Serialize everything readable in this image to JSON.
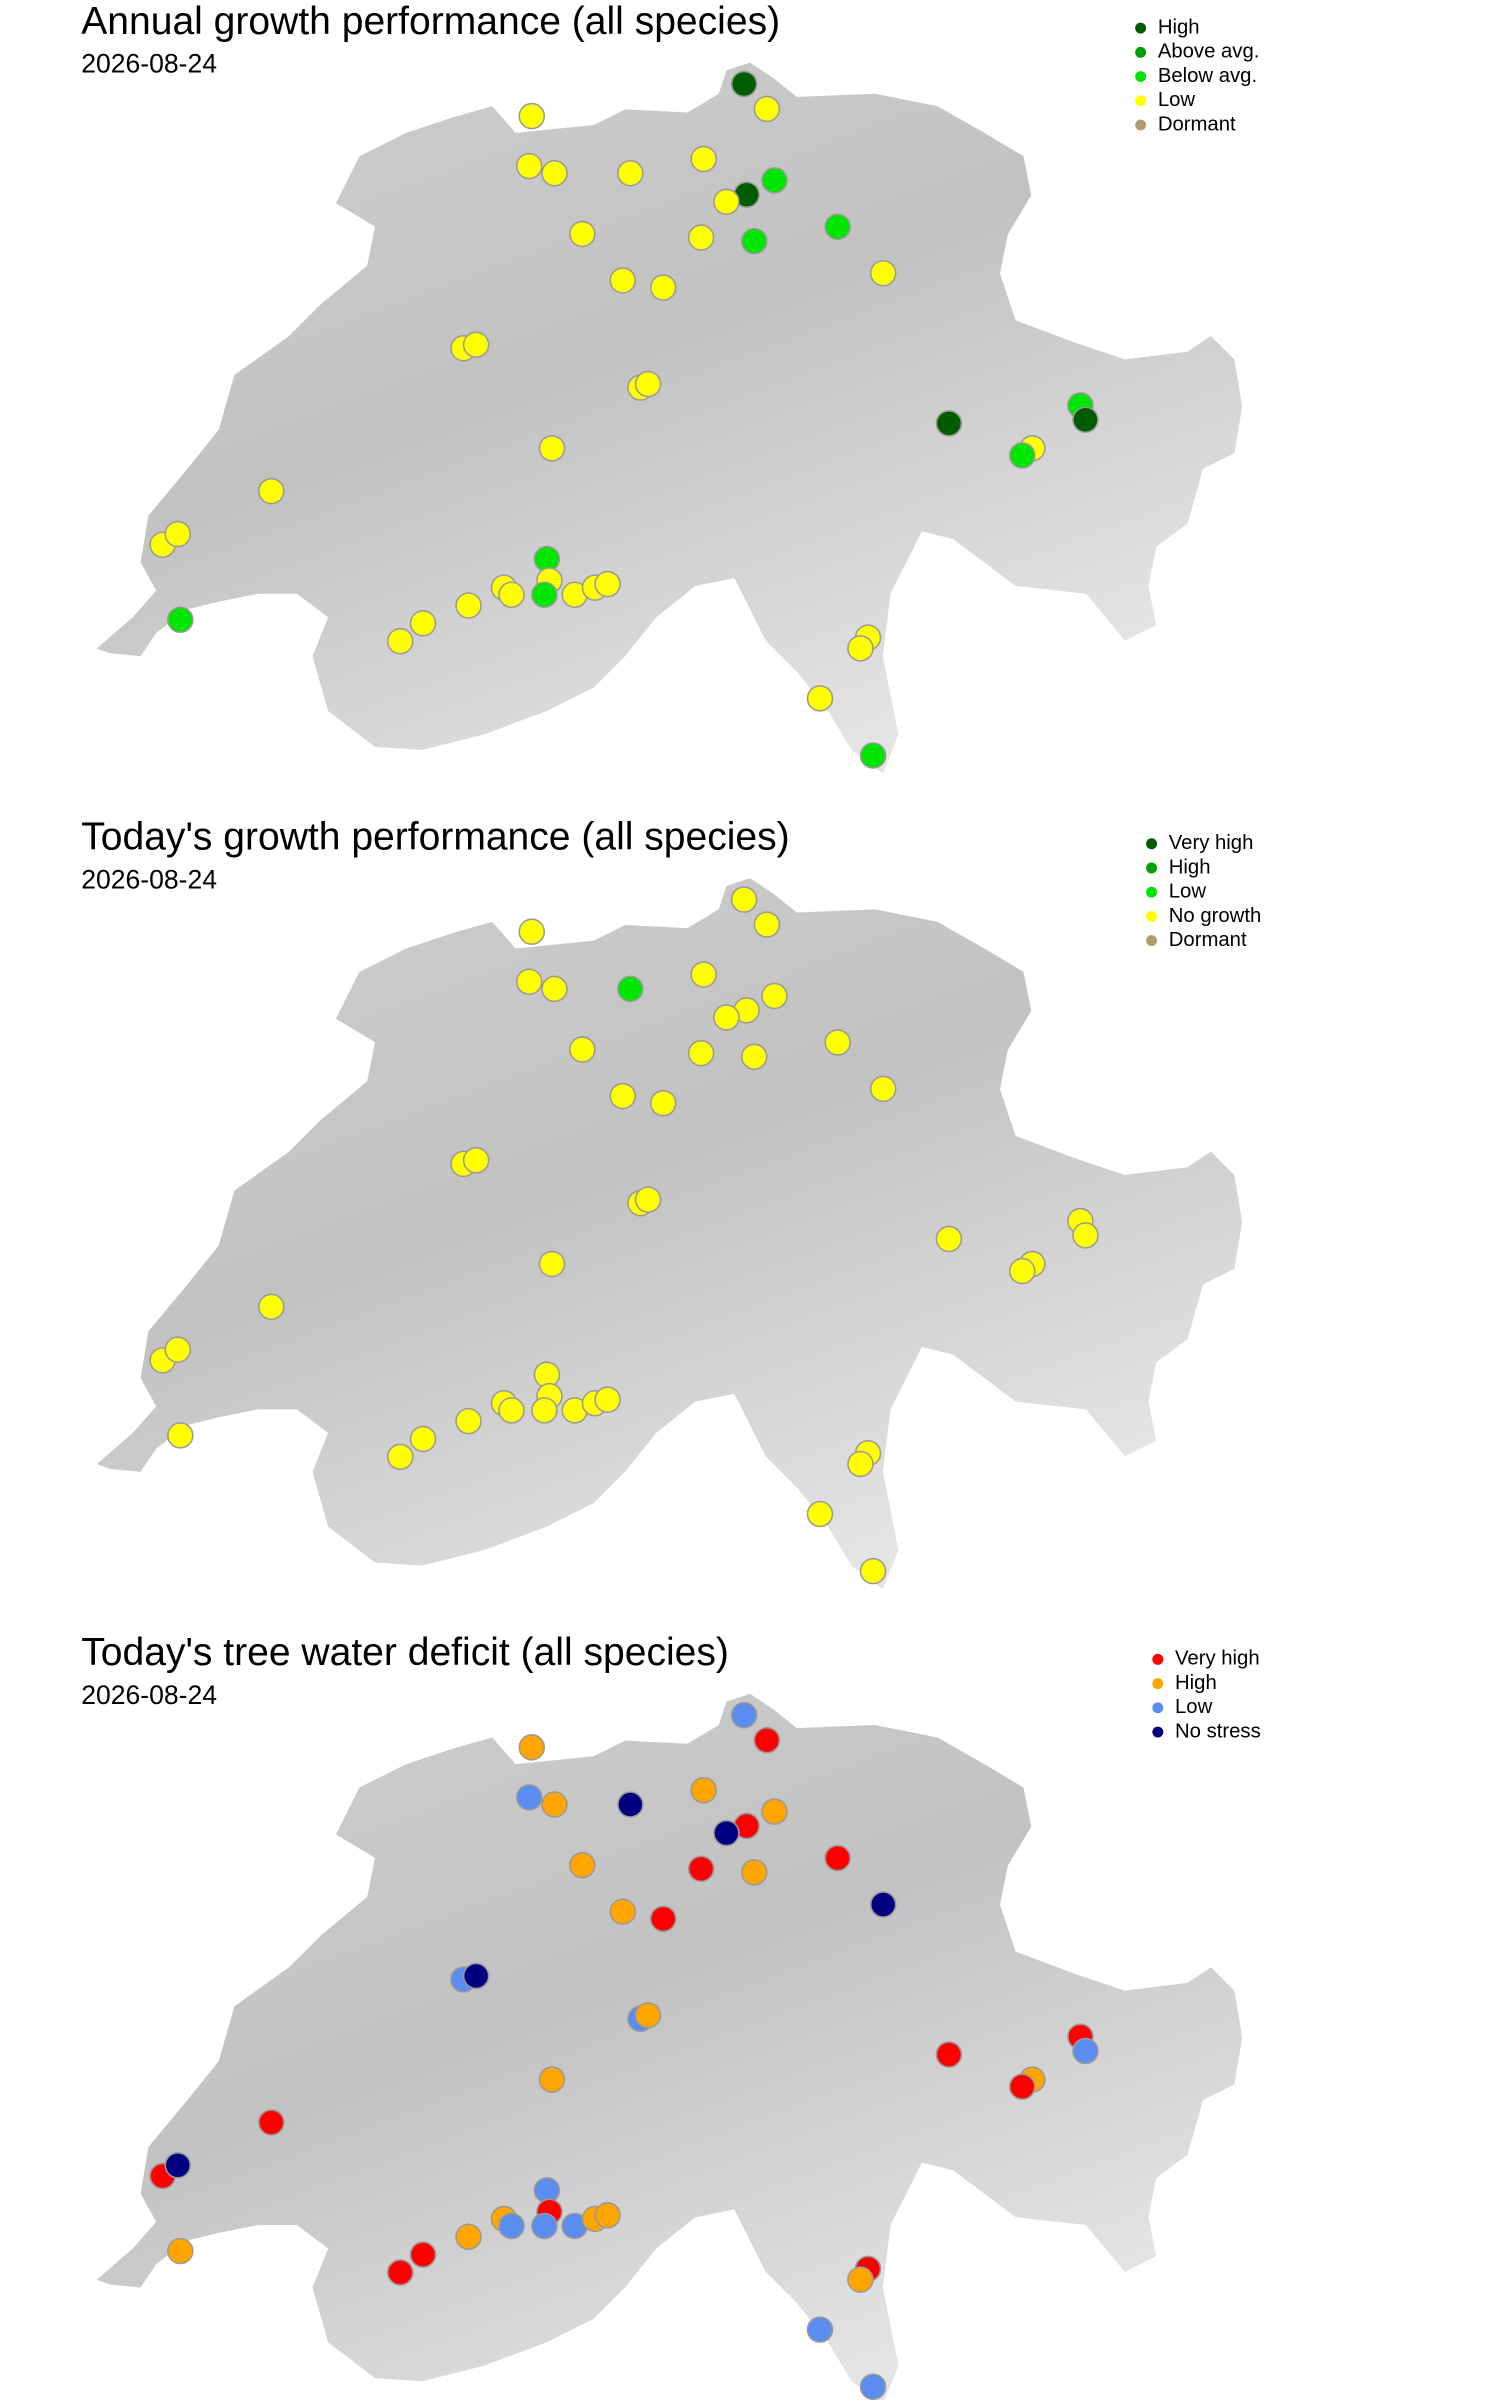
{
  "sites": [
    {
      "lon": 8.52,
      "lat": 47.75
    },
    {
      "lon": 8.61,
      "lat": 47.68
    },
    {
      "lon": 7.68,
      "lat": 47.66
    },
    {
      "lon": 7.67,
      "lat": 47.52
    },
    {
      "lon": 7.77,
      "lat": 47.5
    },
    {
      "lon": 8.07,
      "lat": 47.5
    },
    {
      "lon": 8.36,
      "lat": 47.54
    },
    {
      "lon": 8.64,
      "lat": 47.48
    },
    {
      "lon": 8.53,
      "lat": 47.44
    },
    {
      "lon": 8.45,
      "lat": 47.42
    },
    {
      "lon": 7.88,
      "lat": 47.33
    },
    {
      "lon": 8.35,
      "lat": 47.32
    },
    {
      "lon": 8.56,
      "lat": 47.31
    },
    {
      "lon": 8.89,
      "lat": 47.35
    },
    {
      "lon": 9.07,
      "lat": 47.22
    },
    {
      "lon": 8.04,
      "lat": 47.2
    },
    {
      "lon": 8.2,
      "lat": 47.18
    },
    {
      "lon": 7.41,
      "lat": 47.01
    },
    {
      "lon": 7.46,
      "lat": 47.02
    },
    {
      "lon": 8.11,
      "lat": 46.9
    },
    {
      "lon": 8.14,
      "lat": 46.91
    },
    {
      "lon": 9.33,
      "lat": 46.8
    },
    {
      "lon": 9.85,
      "lat": 46.85
    },
    {
      "lon": 9.87,
      "lat": 46.81
    },
    {
      "lon": 9.66,
      "lat": 46.73
    },
    {
      "lon": 9.62,
      "lat": 46.71
    },
    {
      "lon": 7.76,
      "lat": 46.73
    },
    {
      "lon": 6.65,
      "lat": 46.61
    },
    {
      "lon": 6.22,
      "lat": 46.46
    },
    {
      "lon": 6.28,
      "lat": 46.49
    },
    {
      "lon": 6.29,
      "lat": 46.25
    },
    {
      "lon": 7.74,
      "lat": 46.42
    },
    {
      "lon": 7.75,
      "lat": 46.36
    },
    {
      "lon": 7.73,
      "lat": 46.32
    },
    {
      "lon": 7.57,
      "lat": 46.34
    },
    {
      "lon": 7.6,
      "lat": 46.32
    },
    {
      "lon": 7.43,
      "lat": 46.29
    },
    {
      "lon": 7.25,
      "lat": 46.24
    },
    {
      "lon": 7.16,
      "lat": 46.19
    },
    {
      "lon": 7.85,
      "lat": 46.32
    },
    {
      "lon": 7.93,
      "lat": 46.34
    },
    {
      "lon": 7.98,
      "lat": 46.35
    },
    {
      "lon": 9.01,
      "lat": 46.2
    },
    {
      "lon": 8.98,
      "lat": 46.17
    },
    {
      "lon": 8.82,
      "lat": 46.03
    },
    {
      "lon": 9.03,
      "lat": 45.87
    }
  ],
  "panels": [
    {
      "title": "Annual growth performance (all species)",
      "date": "2026-08-24",
      "legend": [
        {
          "label": "High",
          "color": "#005c00"
        },
        {
          "label": "Above avg.",
          "color": "#00a000"
        },
        {
          "label": "Below avg.",
          "color": "#00e600"
        },
        {
          "label": "Low",
          "color": "#ffff00"
        },
        {
          "label": "Dormant",
          "color": "#b39b6b"
        }
      ],
      "status": [
        "High",
        "Low",
        "Low",
        "Low",
        "Low",
        "Low",
        "Low",
        "Below avg.",
        "High",
        "Low",
        "Low",
        "Low",
        "Below avg.",
        "Below avg.",
        "Low",
        "Low",
        "Low",
        "Low",
        "Low",
        "Low",
        "Low",
        "High",
        "Below avg.",
        "High",
        "Low",
        "Below avg.",
        "Low",
        "Low",
        "Low",
        "Low",
        "Below avg.",
        "Below avg.",
        "Low",
        "Below avg.",
        "Low",
        "Low",
        "Low",
        "Low",
        "Low",
        "Low",
        "Low",
        "Low",
        "Low",
        "Low",
        "Low",
        "Below avg."
      ]
    },
    {
      "title": "Today's growth performance (all species)",
      "date": "2026-08-24",
      "legend": [
        {
          "label": "Very high",
          "color": "#005c00"
        },
        {
          "label": "High",
          "color": "#00a000"
        },
        {
          "label": "Low",
          "color": "#00e600"
        },
        {
          "label": "No growth",
          "color": "#ffff00"
        },
        {
          "label": "Dormant",
          "color": "#b39b6b"
        }
      ],
      "status": [
        "No growth",
        "No growth",
        "No growth",
        "No growth",
        "No growth",
        "Low",
        "No growth",
        "No growth",
        "No growth",
        "No growth",
        "No growth",
        "No growth",
        "No growth",
        "No growth",
        "No growth",
        "No growth",
        "No growth",
        "No growth",
        "No growth",
        "No growth",
        "No growth",
        "No growth",
        "No growth",
        "No growth",
        "No growth",
        "No growth",
        "No growth",
        "No growth",
        "No growth",
        "No growth",
        "No growth",
        "No growth",
        "No growth",
        "No growth",
        "No growth",
        "No growth",
        "No growth",
        "No growth",
        "No growth",
        "No growth",
        "No growth",
        "No growth",
        "No growth",
        "No growth",
        "No growth",
        "No growth"
      ]
    },
    {
      "title": "Today's tree water deficit (all species)",
      "date": "2026-08-24",
      "legend": [
        {
          "label": "Very high",
          "color": "#ff0000"
        },
        {
          "label": "High",
          "color": "#ffa500"
        },
        {
          "label": "Low",
          "color": "#5b8cf0"
        },
        {
          "label": "No stress",
          "color": "#000080"
        }
      ],
      "status": [
        "Low",
        "Very high",
        "High",
        "Low",
        "High",
        "No stress",
        "High",
        "High",
        "Very high",
        "No stress",
        "High",
        "Very high",
        "High",
        "Very high",
        "No stress",
        "High",
        "Very high",
        "Low",
        "No stress",
        "Low",
        "High",
        "Very high",
        "Very high",
        "Low",
        "High",
        "Very high",
        "High",
        "Very high",
        "Very high",
        "No stress",
        "High",
        "Low",
        "Very high",
        "Low",
        "High",
        "Low",
        "High",
        "Very high",
        "Very high",
        "Low",
        "High",
        "High",
        "Very high",
        "High",
        "Low",
        "Low"
      ]
    }
  ]
}
